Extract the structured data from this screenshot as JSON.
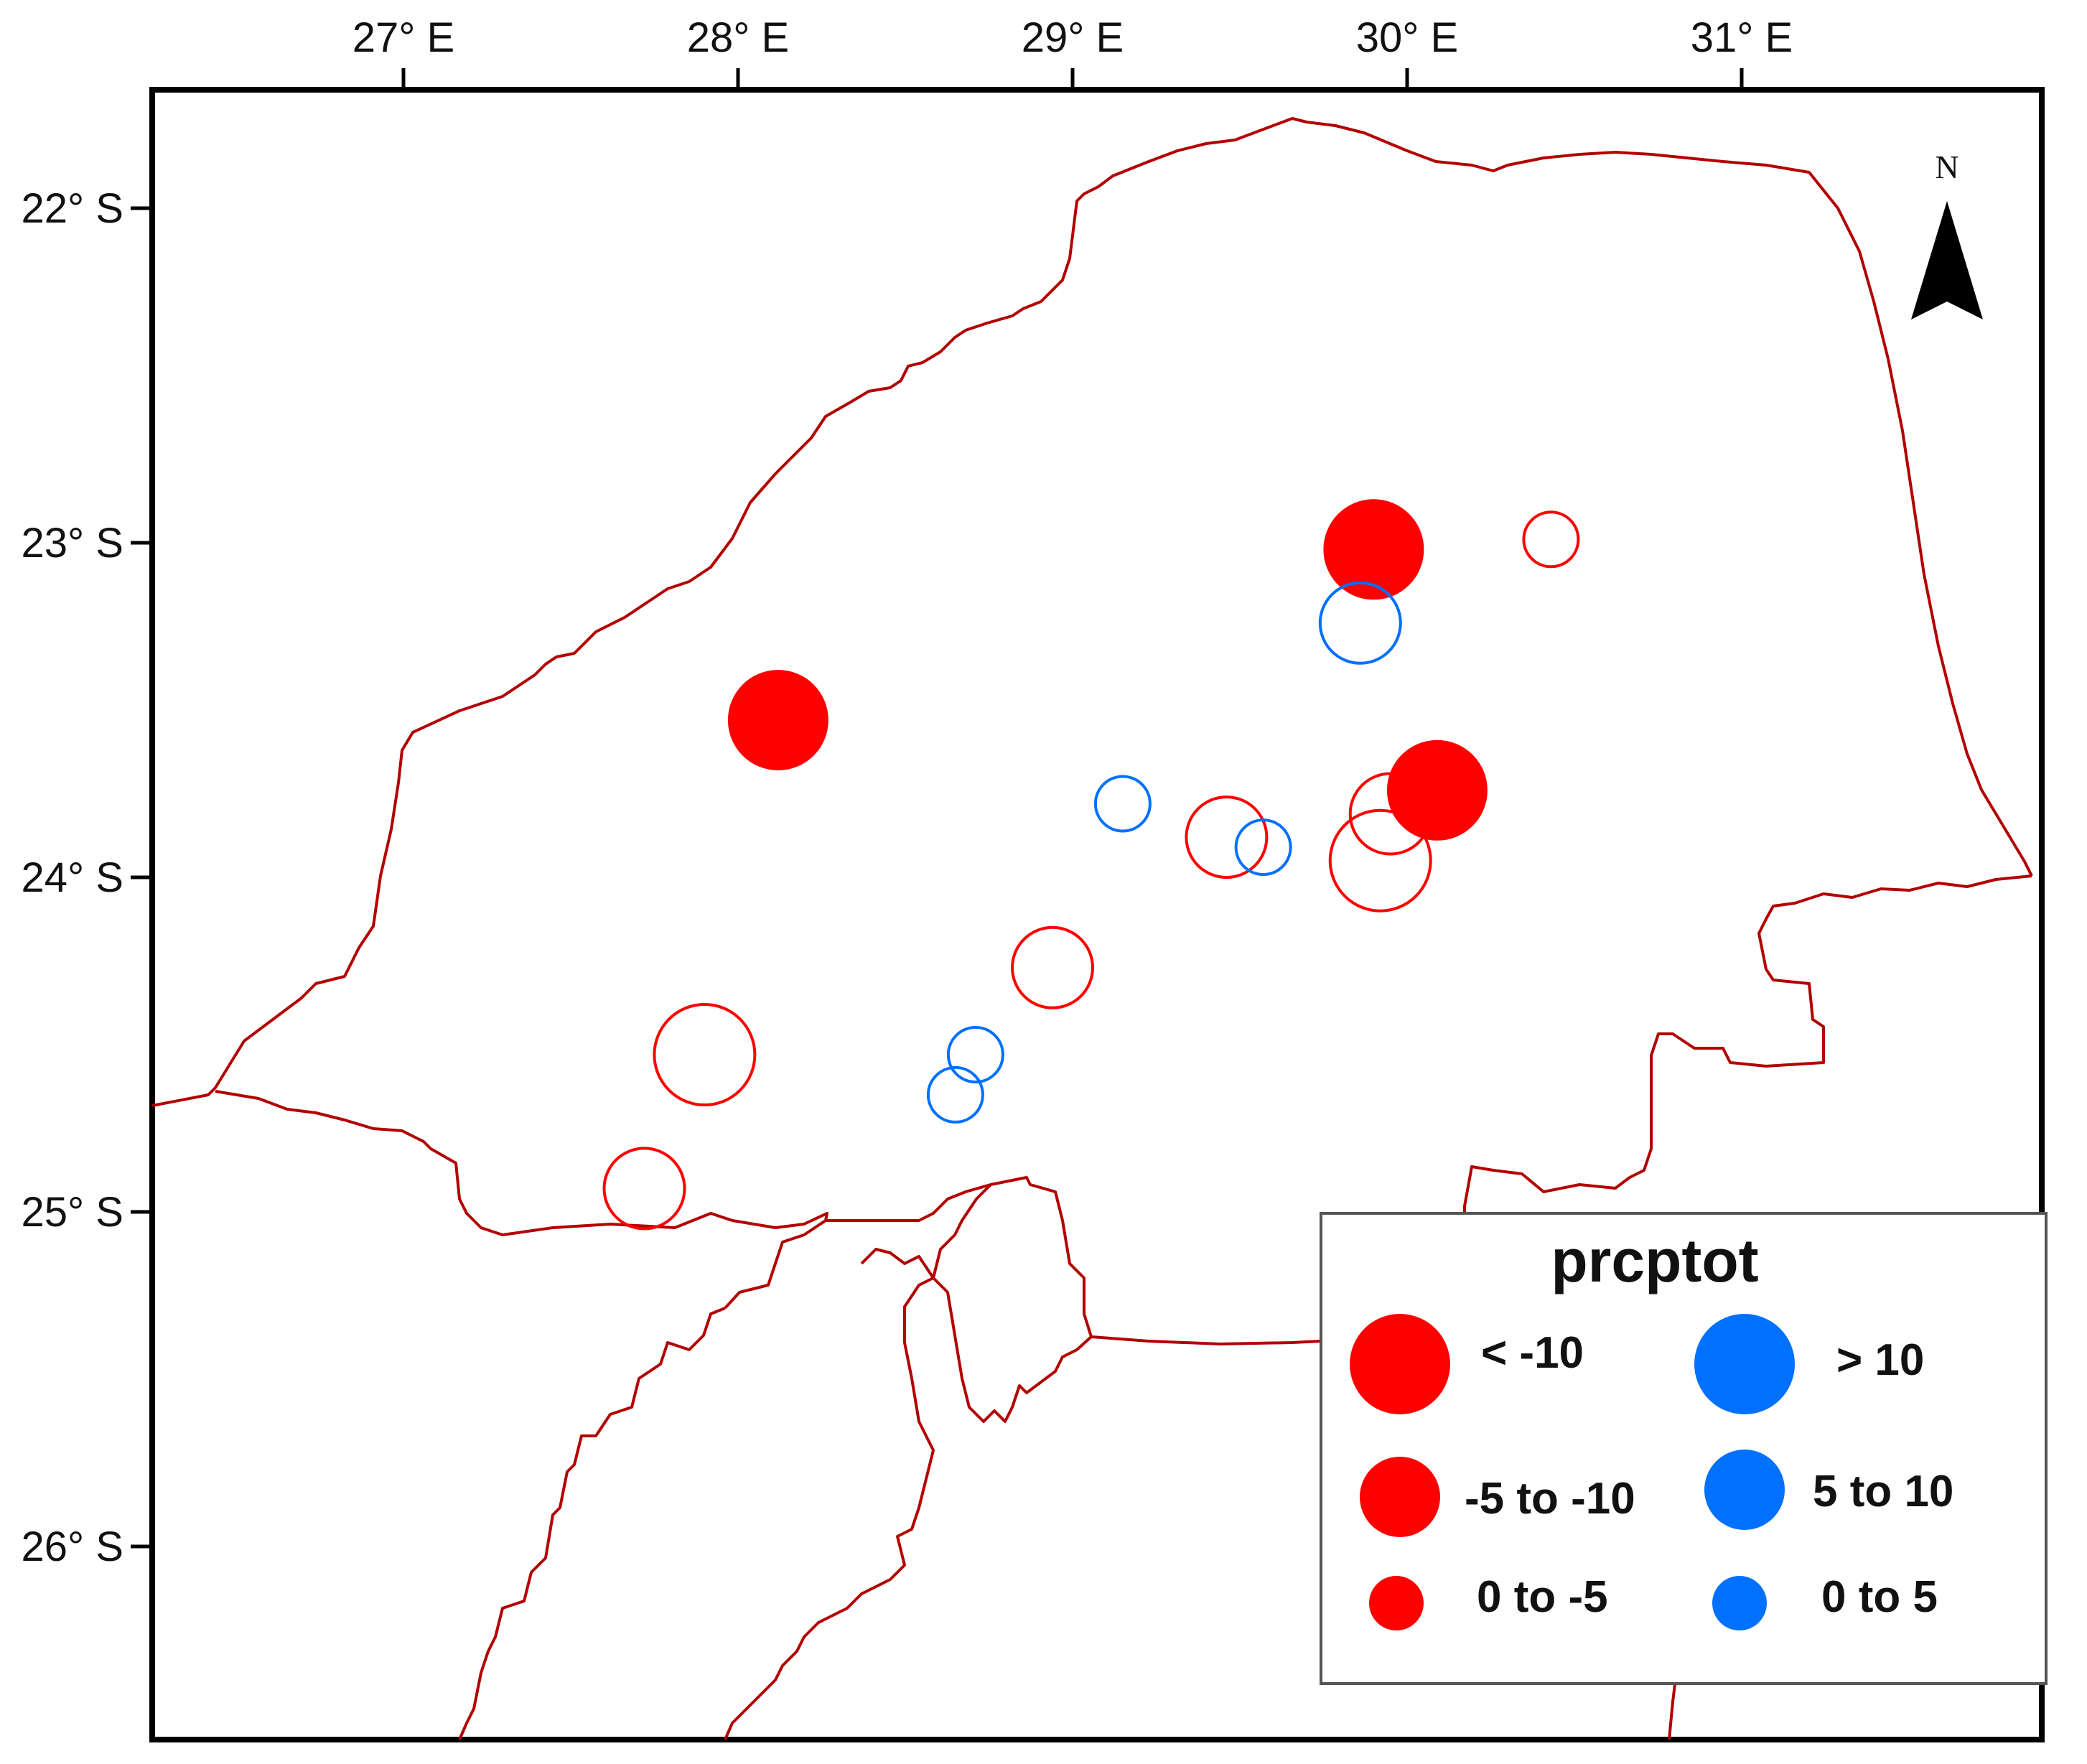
{
  "map": {
    "lon_labels": [
      "27° E",
      "28° E",
      "29° E",
      "30° E",
      "31° E"
    ],
    "lat_labels": [
      "22° S",
      "23° S",
      "24° S",
      "25° S",
      "26° S"
    ],
    "north_arrow": {
      "label": "N",
      "icon": "north-arrow-icon"
    },
    "colors": {
      "negative": "#ff0000",
      "positive": "#0070ff",
      "boundary": "#b30000",
      "frame": "#000000"
    }
  },
  "legend": {
    "title": "prcptot",
    "items": [
      {
        "label": "< -10",
        "color": "#ff0000",
        "class": "lt-neg10"
      },
      {
        "label": "> 10",
        "color": "#0070ff",
        "class": "gt-10"
      },
      {
        "label": "-5 to -10",
        "color": "#ff0000",
        "class": "neg5-neg10"
      },
      {
        "label": "5 to 10",
        "color": "#0070ff",
        "class": "5-10"
      },
      {
        "label": "0 to -5",
        "color": "#ff0000",
        "class": "0-neg5"
      },
      {
        "label": "0 to 5",
        "color": "#0070ff",
        "class": "0-5"
      }
    ]
  },
  "stations": [
    {
      "lon": 29.9,
      "lat": -23.02,
      "class": "< -10",
      "filled": true,
      "color": "#ff0000"
    },
    {
      "lon": 28.12,
      "lat": -23.53,
      "class": "< -10",
      "filled": true,
      "color": "#ff0000"
    },
    {
      "lon": 30.09,
      "lat": -23.74,
      "class": "< -10",
      "filled": true,
      "color": "#ff0000"
    },
    {
      "lon": 30.43,
      "lat": -22.99,
      "class": "0 to -5",
      "filled": false,
      "color": "#ff0000"
    },
    {
      "lon": 29.86,
      "lat": -23.24,
      "class": "5 to 10",
      "filled": false,
      "color": "#0070ff"
    },
    {
      "lon": 29.15,
      "lat": -23.78,
      "class": "0 to 5",
      "filled": false,
      "color": "#0070ff"
    },
    {
      "lon": 29.46,
      "lat": -23.88,
      "class": "-5 to -10",
      "filled": false,
      "color": "#ff0000"
    },
    {
      "lon": 29.57,
      "lat": -23.91,
      "class": "0 to 5",
      "filled": false,
      "color": "#0070ff"
    },
    {
      "lon": 29.95,
      "lat": -23.81,
      "class": "-5 to -10",
      "filled": false,
      "color": "#ff0000"
    },
    {
      "lon": 29.92,
      "lat": -23.95,
      "class": "< -10",
      "filled": false,
      "color": "#ff0000"
    },
    {
      "lon": 28.94,
      "lat": -24.27,
      "class": "-5 to -10",
      "filled": false,
      "color": "#ff0000"
    },
    {
      "lon": 27.9,
      "lat": -24.53,
      "class": "< -10",
      "filled": false,
      "color": "#ff0000"
    },
    {
      "lon": 28.71,
      "lat": -24.53,
      "class": "0 to 5",
      "filled": false,
      "color": "#0070ff"
    },
    {
      "lon": 28.65,
      "lat": -24.65,
      "class": "0 to 5",
      "filled": false,
      "color": "#0070ff"
    },
    {
      "lon": 27.72,
      "lat": -24.93,
      "class": "-5 to -10",
      "filled": false,
      "color": "#ff0000"
    }
  ]
}
